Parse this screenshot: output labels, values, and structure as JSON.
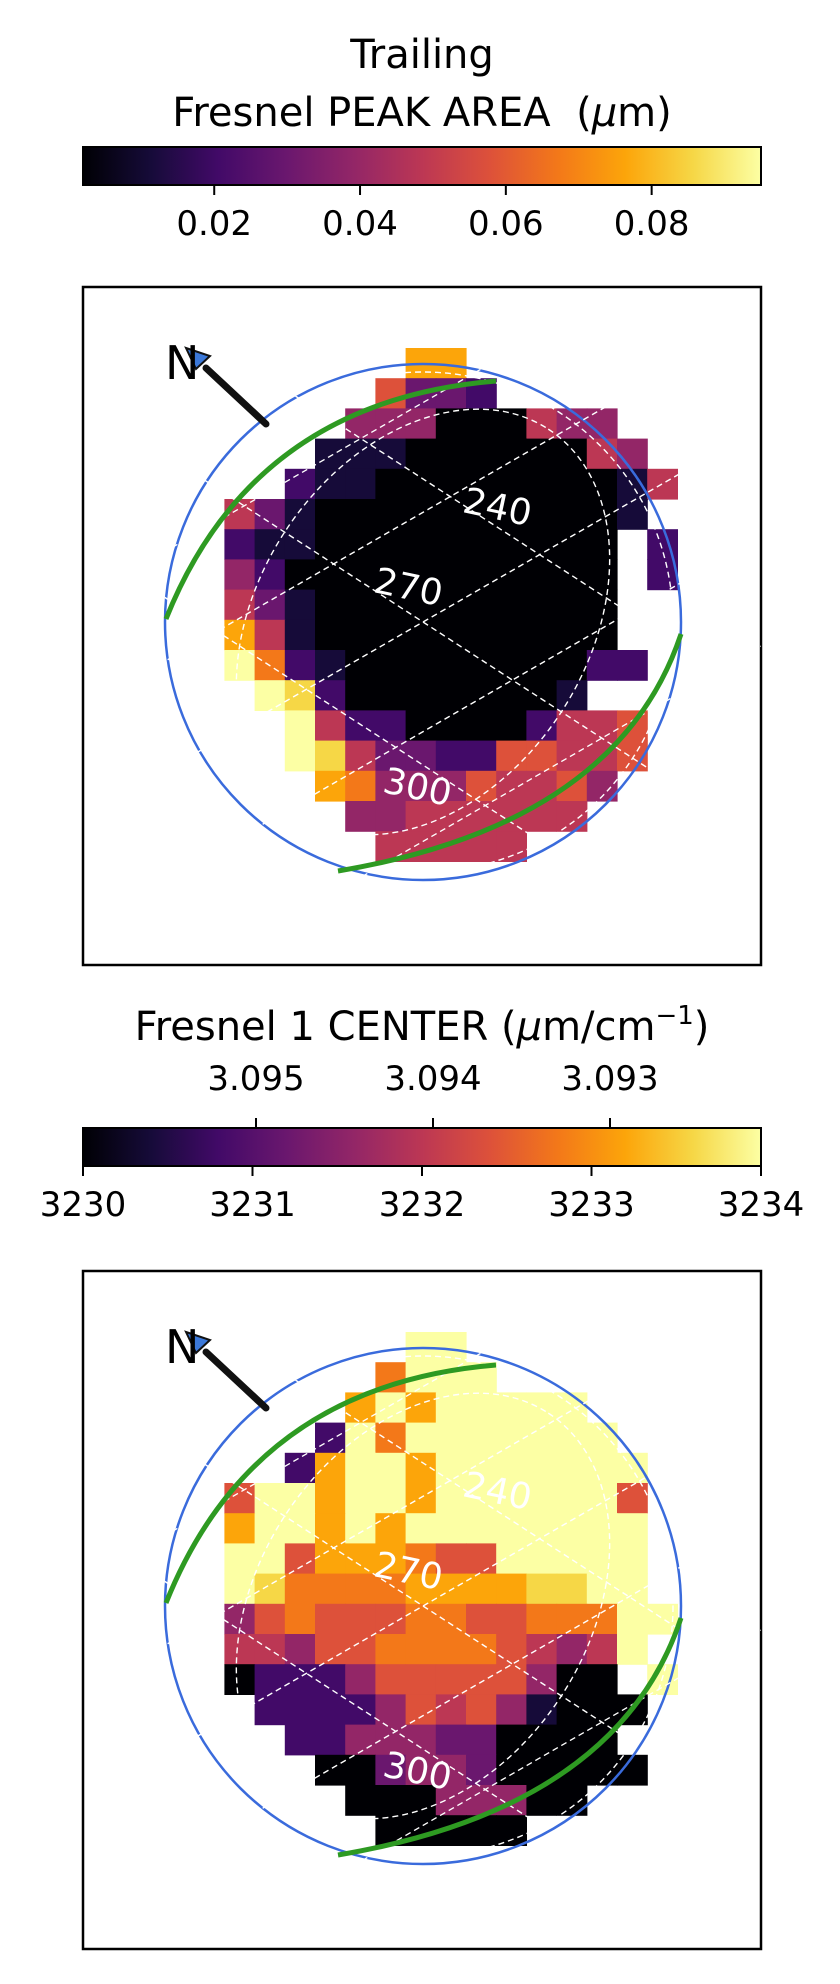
{
  "chart_data": [
    {
      "type": "heatmap",
      "title_line1": "Trailing",
      "title_line2_prefix": "Fresnel PEAK AREA",
      "title_unit_mu": "μ",
      "title_unit_rest": "m)",
      "title_unit_open": "(",
      "colorbar": {
        "colormap": "inferno",
        "range": [
          0.002,
          0.095
        ],
        "ticks": [
          0.02,
          0.04,
          0.06,
          0.08
        ],
        "tick_labels": [
          "0.02",
          "0.04",
          "0.06",
          "0.08"
        ]
      },
      "grid_labels": [
        "240",
        "270",
        "300"
      ],
      "north_label": "N",
      "grid_rows": 18,
      "grid_cols": 17,
      "cell_rows": [
        "........88.......",
        ".......6332......",
        "......444000544..",
        ".....11100000054.",
        "....2110000000015",
        "..53100000000001.",
        "..2110000000000.2",
        "..4200000000000.2",
        "..5310000000000..",
        "..8510000000000..",
        "..A7210000000022.",
        "...A9200000001...",
        "....A52200002556.",
        "....A95332266556.",
        ".....8744465564..",
        "......44555555...",
        ".......55555.....",
        "................."
      ]
    },
    {
      "type": "heatmap",
      "title_prefix": "Fresnel 1 CENTER (",
      "title_mu": "μ",
      "title_rest": "m/cm",
      "title_sup": "−1",
      "title_close": ")",
      "colorbar": {
        "colormap": "inferno",
        "range": [
          3230,
          3234
        ],
        "ticks": [
          3230,
          3231,
          3232,
          3233,
          3234
        ],
        "tick_labels": [
          "3230",
          "3231",
          "3232",
          "3233",
          "3234"
        ],
        "secondary_ticks": [
          3.095,
          3.094,
          3.093
        ],
        "secondary_tick_labels": [
          "3.095",
          "3.094",
          "3.093"
        ]
      },
      "grid_labels": [
        "240",
        "270",
        "300"
      ],
      "north_label": "N",
      "grid_rows": 18,
      "grid_cols": 17,
      "cell_rows": [
        "........AA.......",
        ".......7AAA......",
        "......8A8AAAAA...",
        ".....2A7AAAAAAA..",
        "....28AA8AAAAAAA.",
        "..6AA8AA8AAAAAA6.",
        "..8AA8A8AAAAAAAA.",
        "..AA6888766AAAAA.",
        "..A97777888899AA.",
        "..4676667766777AA",
        "..5546677776545A.",
        "..0222466666400.A",
        "...2222465641000.",
        "....22444330000..",
        ".....00344300000.",
        "......00044400...",
        ".......00000.....",
        "................."
      ]
    }
  ]
}
